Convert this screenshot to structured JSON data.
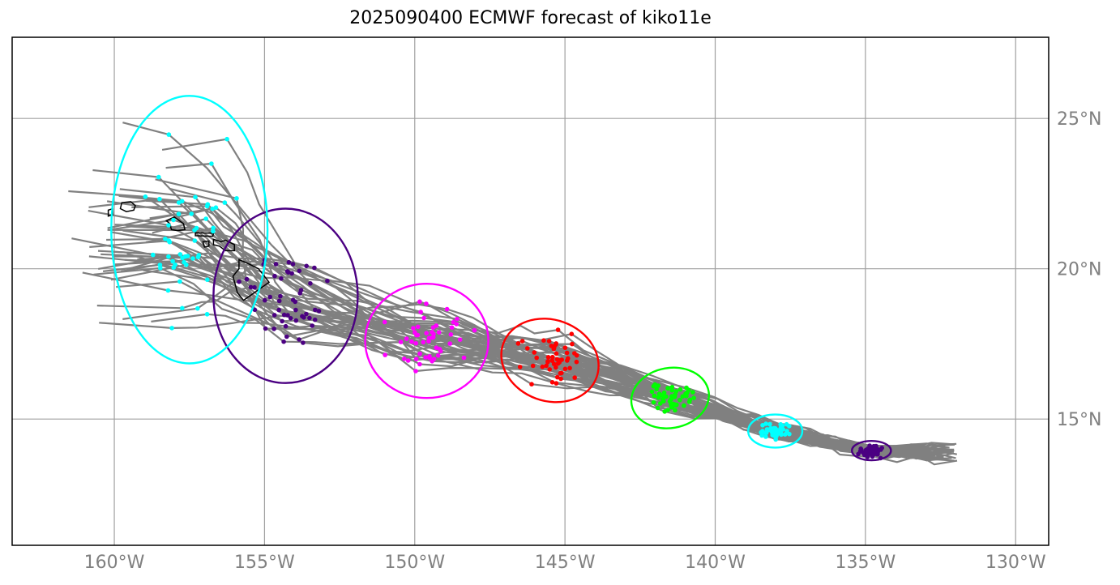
{
  "title": "2025090400 ECMWF forecast of kiko11e",
  "map": {
    "lon_range": [
      -163.4,
      -128.9
    ],
    "lat_range": [
      10.8,
      27.7
    ],
    "grid": true,
    "lon_ticks": [
      {
        "value": -160,
        "label": "160°W"
      },
      {
        "value": -155,
        "label": "155°W"
      },
      {
        "value": -150,
        "label": "150°W"
      },
      {
        "value": -145,
        "label": "145°W"
      },
      {
        "value": -140,
        "label": "140°W"
      },
      {
        "value": -135,
        "label": "135°W"
      },
      {
        "value": -130,
        "label": "130°W"
      }
    ],
    "lat_ticks": [
      {
        "value": 15,
        "label": "15°N"
      },
      {
        "value": 20,
        "label": "20°N"
      },
      {
        "value": 25,
        "label": "25°N"
      }
    ],
    "colors": {
      "grid": "#a0a0a0",
      "track": "#808080",
      "coast": "#000000",
      "frame": "#000000"
    },
    "islands": [
      {
        "name": "kauai",
        "points": [
          [
            -159.75,
            22.2
          ],
          [
            -159.45,
            22.23
          ],
          [
            -159.3,
            22.1
          ],
          [
            -159.35,
            21.95
          ],
          [
            -159.6,
            21.9
          ],
          [
            -159.8,
            22.0
          ]
        ]
      },
      {
        "name": "niihau",
        "points": [
          [
            -160.2,
            21.95
          ],
          [
            -160.05,
            22.0
          ],
          [
            -160.05,
            21.8
          ],
          [
            -160.2,
            21.75
          ]
        ]
      },
      {
        "name": "oahu",
        "points": [
          [
            -158.27,
            21.6
          ],
          [
            -158.0,
            21.72
          ],
          [
            -157.7,
            21.5
          ],
          [
            -157.65,
            21.3
          ],
          [
            -157.9,
            21.27
          ],
          [
            -158.1,
            21.3
          ],
          [
            -158.15,
            21.5
          ]
        ]
      },
      {
        "name": "molokai",
        "points": [
          [
            -157.3,
            21.2
          ],
          [
            -156.7,
            21.18
          ],
          [
            -156.72,
            21.08
          ],
          [
            -157.3,
            21.1
          ]
        ]
      },
      {
        "name": "lanai",
        "points": [
          [
            -157.05,
            20.9
          ],
          [
            -156.85,
            20.92
          ],
          [
            -156.85,
            20.75
          ],
          [
            -157.0,
            20.72
          ]
        ]
      },
      {
        "name": "maui",
        "points": [
          [
            -156.7,
            20.98
          ],
          [
            -156.45,
            20.9
          ],
          [
            -156.3,
            20.95
          ],
          [
            -156.0,
            20.8
          ],
          [
            -156.0,
            20.6
          ],
          [
            -156.3,
            20.6
          ],
          [
            -156.5,
            20.75
          ],
          [
            -156.7,
            20.8
          ]
        ]
      },
      {
        "name": "big-island",
        "points": [
          [
            -155.85,
            20.3
          ],
          [
            -155.6,
            20.2
          ],
          [
            -155.2,
            20.0
          ],
          [
            -154.85,
            19.55
          ],
          [
            -155.2,
            19.3
          ],
          [
            -155.7,
            18.95
          ],
          [
            -155.9,
            19.2
          ],
          [
            -156.05,
            19.75
          ],
          [
            -155.85,
            20.0
          ]
        ]
      }
    ]
  },
  "chart_data": {
    "type": "map-track-forecast",
    "ensemble_tracks_count": 51,
    "track_start": [
      -132.5,
      13.9
    ],
    "ellipses": [
      {
        "lead": "day-1",
        "color": "#4b0082",
        "center": [
          -134.8,
          13.95
        ],
        "rx_deg": 0.65,
        "ry_deg": 0.32,
        "angle": 0
      },
      {
        "lead": "day-2",
        "color": "#00ffff",
        "center": [
          -138.0,
          14.6
        ],
        "rx_deg": 0.9,
        "ry_deg": 0.55,
        "angle": 0
      },
      {
        "lead": "day-3",
        "color": "#00ff00",
        "center": [
          -141.5,
          15.7
        ],
        "rx_deg": 1.3,
        "ry_deg": 1.0,
        "angle": -10
      },
      {
        "lead": "day-4",
        "color": "#ff0000",
        "center": [
          -145.5,
          16.95
        ],
        "rx_deg": 1.65,
        "ry_deg": 1.35,
        "angle": 20
      },
      {
        "lead": "day-5",
        "color": "#ff00ff",
        "center": [
          -149.6,
          17.6
        ],
        "rx_deg": 2.05,
        "ry_deg": 1.9,
        "angle": 0
      },
      {
        "lead": "day-6",
        "color": "#4b0082",
        "center": [
          -154.3,
          19.1
        ],
        "rx_deg": 2.4,
        "ry_deg": 2.9,
        "angle": 0
      },
      {
        "lead": "day-7",
        "color": "#00ffff",
        "center": [
          -157.5,
          21.3
        ],
        "rx_deg": 2.6,
        "ry_deg": 4.45,
        "angle": 0
      }
    ]
  }
}
